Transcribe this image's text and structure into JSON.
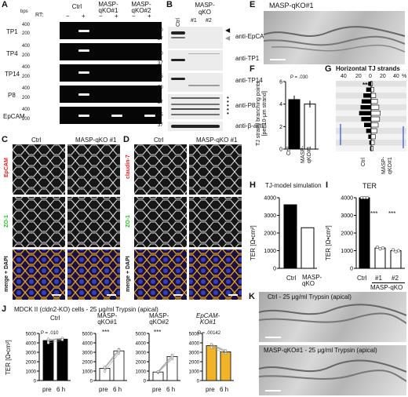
{
  "panels": {
    "A": "A",
    "B": "B",
    "C": "C",
    "D": "D",
    "E": "E",
    "F": "F",
    "G": "G",
    "H": "H",
    "I": "I",
    "J": "J",
    "K": "K"
  },
  "panelA": {
    "bps": "bps",
    "rt": "RT:",
    "groups": [
      "Ctrl",
      "MASP-\nqKO#1",
      "MASP-\nqKO#2"
    ],
    "signs": [
      "−",
      "+",
      "−",
      "+",
      "−",
      "+"
    ],
    "rows": [
      {
        "name": "TP1",
        "ticks": [
          "400",
          "200"
        ]
      },
      {
        "name": "TP4",
        "ticks": [
          "400",
          "200"
        ]
      },
      {
        "name": "TP14",
        "ticks": [
          "400",
          "200"
        ]
      },
      {
        "name": "P8",
        "ticks": [
          "400",
          "200"
        ]
      },
      {
        "name": "EpCAM",
        "ticks": [
          "400",
          "200"
        ]
      }
    ]
  },
  "panelB": {
    "header": "MASP-\nqKO",
    "lanes": [
      "Ctrl",
      "#1",
      "#2"
    ],
    "markers": [
      "50",
      "37",
      "50",
      "37",
      "75",
      "50",
      "37",
      "25",
      "37"
    ],
    "labels": [
      "anti-EpCAM",
      "anti-TP1",
      "anti-TP14",
      "anti-P8",
      "anti-β-actin"
    ]
  },
  "panelC": {
    "cols": [
      "Ctrl",
      "MASP-qKO #1"
    ],
    "rows": [
      "EpCAM",
      "ZO-1",
      "merge + DAPI"
    ]
  },
  "panelD": {
    "cols": [
      "Ctrl",
      "MASP-qKO #1"
    ],
    "rows": [
      "claudin-7",
      "ZO-1",
      "merge + DAPI"
    ]
  },
  "panelE": {
    "title": "MASP-qKO#1"
  },
  "panelF": {
    "ylabel": "TJ strand branching points\n[per 10-μm strand]",
    "pval": "P = .030",
    "categories": [
      "Ctrl",
      "MASP-\nqKO#1"
    ]
  },
  "panelG": {
    "title": "Horizontal TJ strands",
    "top_ticks": [
      "40",
      "20",
      "0",
      "20",
      "40"
    ],
    "pct": "%",
    "stars": "***",
    "categories": [
      "Ctrl",
      "MASP-\nqKO#1"
    ]
  },
  "panelH": {
    "title": "TJ-model simulation",
    "ylabel": "TER [Ω•cm²]",
    "categories": [
      "Ctrl",
      "MASP-\nqKO"
    ]
  },
  "panelI": {
    "title": "TER",
    "ylabel": "TER [Ω•cm²]",
    "categories": [
      "Ctrl",
      "#1",
      "#2"
    ],
    "group": "MASP-qKO",
    "stars": [
      "***",
      "***"
    ]
  },
  "panelJ": {
    "title": "MDCK II (cldn2-KO) cells - 25 μg/ml Trypsin (apical)",
    "ylabel": "TER [Ω•cm²]",
    "subplots": [
      {
        "title": "Ctrl",
        "annot": "P = .010"
      },
      {
        "title": "MASP-\nqKO#1",
        "annot": "***"
      },
      {
        "title": "MASP-\nqKO#2",
        "annot": "***"
      },
      {
        "title": "EpCAM-\nKO#1",
        "annot": "P = .00142"
      }
    ],
    "xcats": [
      "pre",
      "6 h"
    ]
  },
  "panelK": {
    "top": "Ctrl - 25 μg/ml Trypsin (apical)",
    "bottom": "MASP-qKO#1 - 25 μg/ml Trypsin (apical)"
  },
  "chart_data": [
    {
      "panel": "F",
      "type": "bar",
      "categories": [
        "Ctrl",
        "MASP-qKO#1"
      ],
      "values": [
        4.4,
        4.0
      ],
      "errors": [
        0.35,
        0.3
      ],
      "ylim": [
        0,
        6
      ],
      "yticks": [
        0,
        2,
        4,
        6
      ],
      "colors": [
        "#000000",
        "#ffffff"
      ]
    },
    {
      "panel": "G",
      "type": "bar",
      "title": "Horizontal TJ strands",
      "categories": [
        "Ctrl",
        "MASP-qKO#1"
      ],
      "ctrl_percent": [
        8,
        14,
        22,
        27,
        30,
        34,
        28,
        20,
        14,
        8,
        5,
        3
      ],
      "ko_percent": [
        4,
        8,
        13,
        18,
        22,
        26,
        24,
        20,
        16,
        12,
        9,
        6
      ],
      "top_axis": [
        40,
        20,
        0,
        20,
        40
      ]
    },
    {
      "panel": "H",
      "type": "bar",
      "title": "TJ-model simulation",
      "categories": [
        "Ctrl",
        "MASP-qKO"
      ],
      "values": [
        3600,
        2300
      ],
      "ylim": [
        0,
        4000
      ],
      "yticks": [
        0,
        1000,
        2000,
        3000,
        4000
      ],
      "colors": [
        "#000000",
        "#ffffff"
      ]
    },
    {
      "panel": "I",
      "type": "bar",
      "title": "TER",
      "categories": [
        "Ctrl",
        "#1",
        "#2"
      ],
      "values": [
        4200,
        1150,
        1000
      ],
      "errors": [
        150,
        80,
        80
      ],
      "points": [
        [
          4300,
          4150,
          4000
        ],
        [
          1200,
          1100,
          1150
        ],
        [
          1050,
          950,
          1000
        ]
      ],
      "ylim": [
        0,
        4000
      ],
      "yticks": [
        0,
        1000,
        2000,
        3000,
        4000
      ],
      "colors": [
        "#000000",
        "#ffffff",
        "#ffffff"
      ]
    },
    {
      "panel": "J",
      "type": "bar",
      "categories": [
        "pre",
        "6 h"
      ],
      "ylim": [
        0,
        5000
      ],
      "yticks": [
        0,
        1000,
        2000,
        3000,
        4000,
        5000
      ],
      "series": [
        {
          "name": "Ctrl",
          "values": [
            4250,
            4400
          ],
          "pre_points": [
            4000,
            4200,
            4350,
            4400
          ],
          "post_points": [
            4300,
            4450,
            4500,
            4350
          ],
          "color": "#000000"
        },
        {
          "name": "MASP-qKO#1",
          "values": [
            1300,
            3150
          ],
          "pre_points": [
            1000,
            1300,
            1400,
            1400
          ],
          "post_points": [
            2900,
            3100,
            3300,
            3250
          ],
          "color": "#ffffff"
        },
        {
          "name": "MASP-qKO#2",
          "values": [
            900,
            2550
          ],
          "pre_points": [
            850,
            900,
            950,
            950
          ],
          "post_points": [
            2300,
            2500,
            2700,
            2700
          ],
          "color": "#ffffff"
        },
        {
          "name": "EpCAM-KO#1",
          "values": [
            3700,
            3050
          ],
          "pre_points": [
            3500,
            3700,
            3800,
            3850
          ],
          "post_points": [
            2900,
            3050,
            3100,
            3200
          ],
          "color": "#f0b429"
        }
      ]
    }
  ]
}
